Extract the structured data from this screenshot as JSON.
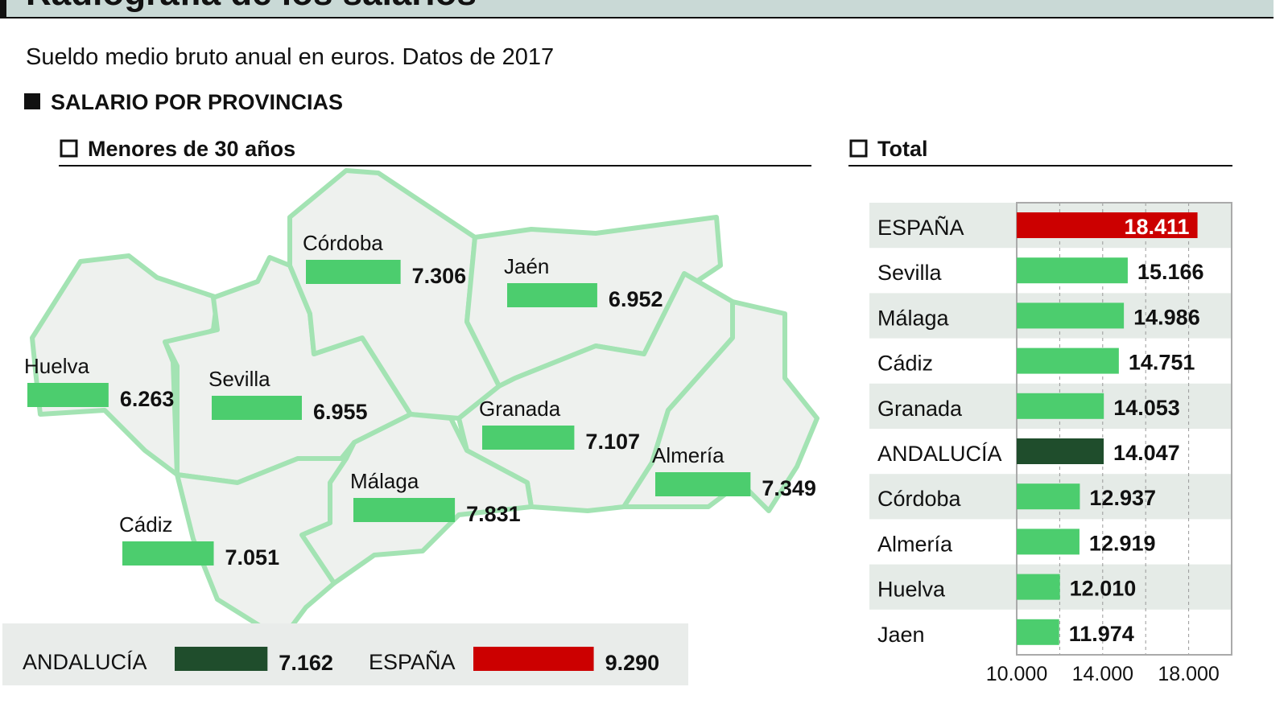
{
  "title": "Radiografía de los salarios",
  "subtitle": "Sueldo medio bruto anual en euros. Datos de 2017",
  "section": "SALARIO POR PROVINCIAS",
  "chart_data": [
    {
      "type": "map-bar",
      "title": "Menores de 30 años",
      "categories": [
        "Córdoba",
        "Jaén",
        "Huelva",
        "Sevilla",
        "Granada",
        "Almería",
        "Málaga",
        "Cádiz",
        "ANDALUCÍA",
        "ESPAÑA"
      ],
      "values": [
        7306,
        6952,
        6263,
        6955,
        7107,
        7349,
        7831,
        7051,
        7162,
        9290
      ],
      "value_labels": [
        "7.306",
        "6.952",
        "6.263",
        "6.955",
        "7.107",
        "7.349",
        "7.831",
        "7.051",
        "7.162",
        "9.290"
      ],
      "colors": [
        "#4ccd6e",
        "#4ccd6e",
        "#4ccd6e",
        "#4ccd6e",
        "#4ccd6e",
        "#4ccd6e",
        "#4ccd6e",
        "#4ccd6e",
        "#1f4d2c",
        "#cc0000"
      ]
    },
    {
      "type": "hbar",
      "title": "Total",
      "categories": [
        "ESPAÑA",
        "Sevilla",
        "Málaga",
        "Cádiz",
        "Granada",
        "ANDALUCÍA",
        "Córdoba",
        "Almería",
        "Huelva",
        "Jaen"
      ],
      "values": [
        18411,
        15166,
        14986,
        14751,
        14053,
        14047,
        12937,
        12919,
        12010,
        11974
      ],
      "value_labels": [
        "18.411",
        "15.166",
        "14.986",
        "14.751",
        "14.053",
        "14.047",
        "12.937",
        "12.919",
        "12.010",
        "11.974"
      ],
      "colors": [
        "#cc0000",
        "#4ccd6e",
        "#4ccd6e",
        "#4ccd6e",
        "#4ccd6e",
        "#1f4d2c",
        "#4ccd6e",
        "#4ccd6e",
        "#4ccd6e",
        "#4ccd6e"
      ],
      "xlim": [
        10000,
        20000
      ],
      "xticks": [
        {
          "value": 10000,
          "label": "10.000"
        },
        {
          "value": 14000,
          "label": "14.000"
        },
        {
          "value": 18000,
          "label": "18.000"
        }
      ],
      "minor_xticks": [
        12000,
        16000
      ]
    }
  ]
}
